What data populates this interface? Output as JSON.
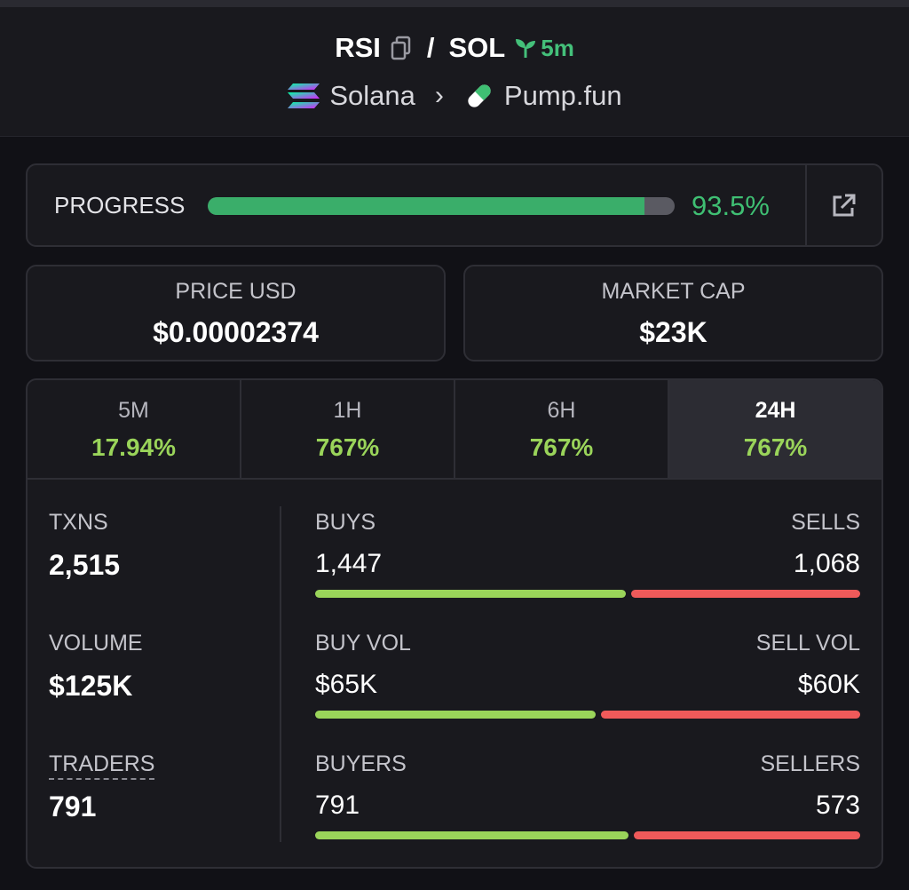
{
  "header": {
    "token": "RSI",
    "separator": "/",
    "quote": "SOL",
    "age": "5m",
    "chain": "Solana",
    "platform": "Pump.fun",
    "age_color": "#44c07a"
  },
  "progress": {
    "label": "PROGRESS",
    "value": 93.5,
    "text": "93.5%",
    "color": "#3aae6a"
  },
  "price": {
    "label": "PRICE USD",
    "value": "$0.00002374"
  },
  "market_cap": {
    "label": "MARKET CAP",
    "value": "$23K"
  },
  "tabs": [
    {
      "label": "5M",
      "value": "17.94%",
      "active": false
    },
    {
      "label": "1H",
      "value": "767%",
      "active": false
    },
    {
      "label": "6H",
      "value": "767%",
      "active": false
    },
    {
      "label": "24H",
      "value": "767%",
      "active": true
    }
  ],
  "stats": {
    "txns": {
      "label": "TXNS",
      "value": "2,515"
    },
    "volume": {
      "label": "VOLUME",
      "value": "$125K"
    },
    "traders": {
      "label": "TRADERS",
      "value": "791"
    }
  },
  "pairs": [
    {
      "left_label": "BUYS",
      "left_value": "1,447",
      "right_label": "SELLS",
      "right_value": "1,068",
      "left_amount": 1447,
      "right_amount": 1068
    },
    {
      "left_label": "BUY VOL",
      "left_value": "$65K",
      "right_label": "SELL VOL",
      "right_value": "$60K",
      "left_amount": 65,
      "right_amount": 60
    },
    {
      "left_label": "BUYERS",
      "left_value": "791",
      "right_label": "SELLERS",
      "right_value": "573",
      "left_amount": 791,
      "right_amount": 573
    }
  ],
  "colors": {
    "positive": "#9ad45a",
    "negative": "#ef5a5a",
    "background": "#111116",
    "panel": "#19191e"
  },
  "icons": [
    "copy-icon",
    "seedling-icon",
    "solana-logo-icon",
    "chevron-right-icon",
    "pill-icon",
    "external-link-icon"
  ]
}
